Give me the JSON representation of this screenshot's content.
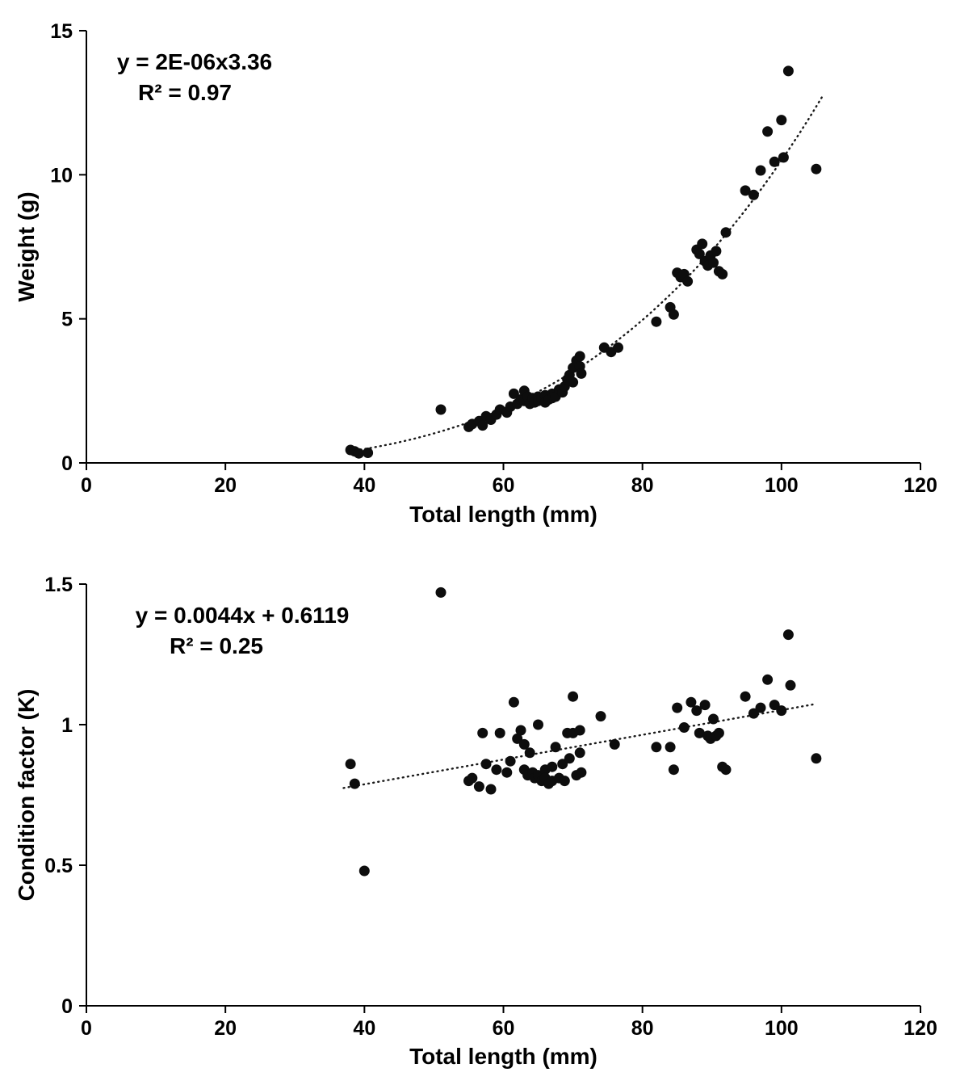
{
  "page": {
    "background": "#ffffff",
    "text_color": "#000000",
    "marker_color": "#0d0d0d"
  },
  "chart_data": [
    {
      "type": "scatter",
      "title": "",
      "xlabel": "Total length (mm)",
      "ylabel": "Weight (g)",
      "xlim": [
        0,
        120
      ],
      "ylim": [
        0,
        15
      ],
      "xticks": [
        0,
        20,
        40,
        60,
        80,
        100,
        120
      ],
      "xtick_labels": [
        "0",
        "20",
        "40",
        "60",
        "80",
        "100",
        "120"
      ],
      "yticks": [
        0,
        5,
        10,
        15
      ],
      "ytick_labels": [
        "0",
        "5",
        "10",
        "15"
      ],
      "grid": false,
      "legend": "none",
      "annotation": {
        "line1": "y = 2E-06x3.36",
        "line2": "R² = 0.97"
      },
      "trendline": {
        "kind": "power",
        "coef": 2e-06,
        "exp": 3.36,
        "x_start": 38,
        "x_end": 106,
        "style": "dotted"
      },
      "marker": {
        "shape": "circle",
        "color": "#0d0d0d",
        "radius": 6.5
      },
      "points": [
        [
          38,
          0.45
        ],
        [
          38.6,
          0.4
        ],
        [
          39.2,
          0.33
        ],
        [
          40.5,
          0.35
        ],
        [
          51,
          1.85
        ],
        [
          55,
          1.25
        ],
        [
          55.5,
          1.35
        ],
        [
          56.5,
          1.45
        ],
        [
          57,
          1.3
        ],
        [
          57.5,
          1.62
        ],
        [
          58.2,
          1.5
        ],
        [
          59,
          1.68
        ],
        [
          59.5,
          1.85
        ],
        [
          60.5,
          1.75
        ],
        [
          61,
          1.95
        ],
        [
          61.5,
          2.4
        ],
        [
          62,
          2.05
        ],
        [
          62.5,
          2.2
        ],
        [
          63,
          2.5
        ],
        [
          63,
          2.15
        ],
        [
          63.5,
          2.3
        ],
        [
          63.8,
          2.05
        ],
        [
          64.2,
          2.25
        ],
        [
          64.5,
          2.1
        ],
        [
          65,
          2.3
        ],
        [
          65,
          2.15
        ],
        [
          65.5,
          2.25
        ],
        [
          66,
          2.35
        ],
        [
          66,
          2.1
        ],
        [
          66.5,
          2.2
        ],
        [
          67,
          2.4
        ],
        [
          67,
          2.25
        ],
        [
          67.5,
          2.3
        ],
        [
          68,
          2.55
        ],
        [
          68.5,
          2.45
        ],
        [
          68.8,
          2.65
        ],
        [
          69.2,
          2.9
        ],
        [
          69.5,
          3.05
        ],
        [
          70,
          2.8
        ],
        [
          70,
          3.3
        ],
        [
          70.5,
          3.55
        ],
        [
          71,
          3.7
        ],
        [
          71,
          3.35
        ],
        [
          71.2,
          3.1
        ],
        [
          74.5,
          4.0
        ],
        [
          75.5,
          3.85
        ],
        [
          76.5,
          4.0
        ],
        [
          82,
          4.9
        ],
        [
          84,
          5.4
        ],
        [
          84.5,
          5.15
        ],
        [
          85,
          6.6
        ],
        [
          85.5,
          6.45
        ],
        [
          86,
          6.55
        ],
        [
          86.5,
          6.3
        ],
        [
          87.8,
          7.4
        ],
        [
          88.2,
          7.25
        ],
        [
          88.6,
          7.6
        ],
        [
          89,
          7.0
        ],
        [
          89.4,
          6.85
        ],
        [
          89.8,
          7.2
        ],
        [
          90.2,
          6.95
        ],
        [
          90.6,
          7.35
        ],
        [
          91,
          6.65
        ],
        [
          91.5,
          6.55
        ],
        [
          92,
          8.0
        ],
        [
          94.8,
          9.45
        ],
        [
          96,
          9.3
        ],
        [
          97,
          10.15
        ],
        [
          98,
          11.5
        ],
        [
          99,
          10.45
        ],
        [
          100,
          11.9
        ],
        [
          100.3,
          10.6
        ],
        [
          101,
          13.6
        ],
        [
          105,
          10.2
        ]
      ]
    },
    {
      "type": "scatter",
      "title": "",
      "xlabel": "Total length (mm)",
      "ylabel": "Condition factor (K)",
      "xlim": [
        0,
        120
      ],
      "ylim": [
        0,
        1.5
      ],
      "xticks": [
        0,
        20,
        40,
        60,
        80,
        100,
        120
      ],
      "xtick_labels": [
        "0",
        "20",
        "40",
        "60",
        "80",
        "100",
        "120"
      ],
      "yticks": [
        0,
        0.5,
        1,
        1.5
      ],
      "ytick_labels": [
        "0",
        "0.5",
        "1",
        "1.5"
      ],
      "grid": false,
      "legend": "none",
      "annotation": {
        "line1": "y = 0.0044x + 0.6119",
        "line2": "R² = 0.25"
      },
      "trendline": {
        "kind": "linear",
        "slope": 0.0044,
        "intercept": 0.6119,
        "x_start": 37,
        "x_end": 105,
        "style": "dotted"
      },
      "marker": {
        "shape": "circle",
        "color": "#0d0d0d",
        "radius": 6.5
      },
      "points": [
        [
          38,
          0.86
        ],
        [
          38.6,
          0.79
        ],
        [
          40,
          0.48
        ],
        [
          51,
          1.47
        ],
        [
          55,
          0.8
        ],
        [
          55.5,
          0.81
        ],
        [
          56.5,
          0.78
        ],
        [
          57,
          0.97
        ],
        [
          57.5,
          0.86
        ],
        [
          58.2,
          0.77
        ],
        [
          59,
          0.84
        ],
        [
          59.5,
          0.97
        ],
        [
          60.5,
          0.83
        ],
        [
          61,
          0.87
        ],
        [
          61.5,
          1.08
        ],
        [
          62,
          0.95
        ],
        [
          62.5,
          0.98
        ],
        [
          63,
          0.93
        ],
        [
          63,
          0.84
        ],
        [
          63.5,
          0.82
        ],
        [
          63.8,
          0.9
        ],
        [
          64.2,
          0.83
        ],
        [
          64.5,
          0.81
        ],
        [
          65,
          1.0
        ],
        [
          65,
          0.82
        ],
        [
          65.5,
          0.8
        ],
        [
          66,
          0.84
        ],
        [
          66,
          0.81
        ],
        [
          66.5,
          0.79
        ],
        [
          67,
          0.85
        ],
        [
          67,
          0.8
        ],
        [
          67.5,
          0.92
        ],
        [
          68,
          0.81
        ],
        [
          68.5,
          0.86
        ],
        [
          68.8,
          0.8
        ],
        [
          69.2,
          0.97
        ],
        [
          69.5,
          0.88
        ],
        [
          70,
          1.1
        ],
        [
          70,
          0.97
        ],
        [
          70.5,
          0.82
        ],
        [
          71,
          0.98
        ],
        [
          71,
          0.9
        ],
        [
          71.2,
          0.83
        ],
        [
          74,
          1.03
        ],
        [
          76,
          0.93
        ],
        [
          82,
          0.92
        ],
        [
          84,
          0.92
        ],
        [
          84.5,
          0.84
        ],
        [
          85,
          1.06
        ],
        [
          86,
          0.99
        ],
        [
          87,
          1.08
        ],
        [
          87.8,
          1.05
        ],
        [
          88.2,
          0.97
        ],
        [
          89,
          1.07
        ],
        [
          89.4,
          0.96
        ],
        [
          89.8,
          0.95
        ],
        [
          90.2,
          1.02
        ],
        [
          90.6,
          0.96
        ],
        [
          91,
          0.97
        ],
        [
          91.5,
          0.85
        ],
        [
          92,
          0.84
        ],
        [
          94.8,
          1.1
        ],
        [
          96,
          1.04
        ],
        [
          97,
          1.06
        ],
        [
          98,
          1.16
        ],
        [
          99,
          1.07
        ],
        [
          100,
          1.05
        ],
        [
          101,
          1.32
        ],
        [
          101.3,
          1.14
        ],
        [
          105,
          0.88
        ]
      ]
    }
  ]
}
